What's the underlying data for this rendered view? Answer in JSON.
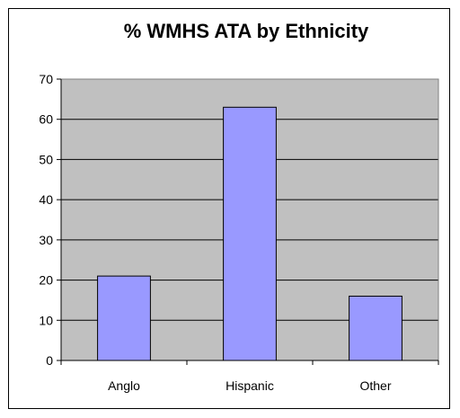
{
  "chart_data": {
    "type": "bar",
    "title": "% WMHS ATA by Ethnicity",
    "xlabel": "",
    "ylabel": "",
    "categories": [
      "Anglo",
      "Hispanic",
      "Other"
    ],
    "values": [
      21,
      63,
      16
    ],
    "ylim": [
      0,
      70
    ],
    "yticks": [
      0,
      10,
      20,
      30,
      40,
      50,
      60,
      70
    ],
    "grid": true,
    "legend": "none",
    "colors": {
      "bar": "#9999ff",
      "plot_bg": "#c0c0c0",
      "grid": "#000000"
    }
  }
}
